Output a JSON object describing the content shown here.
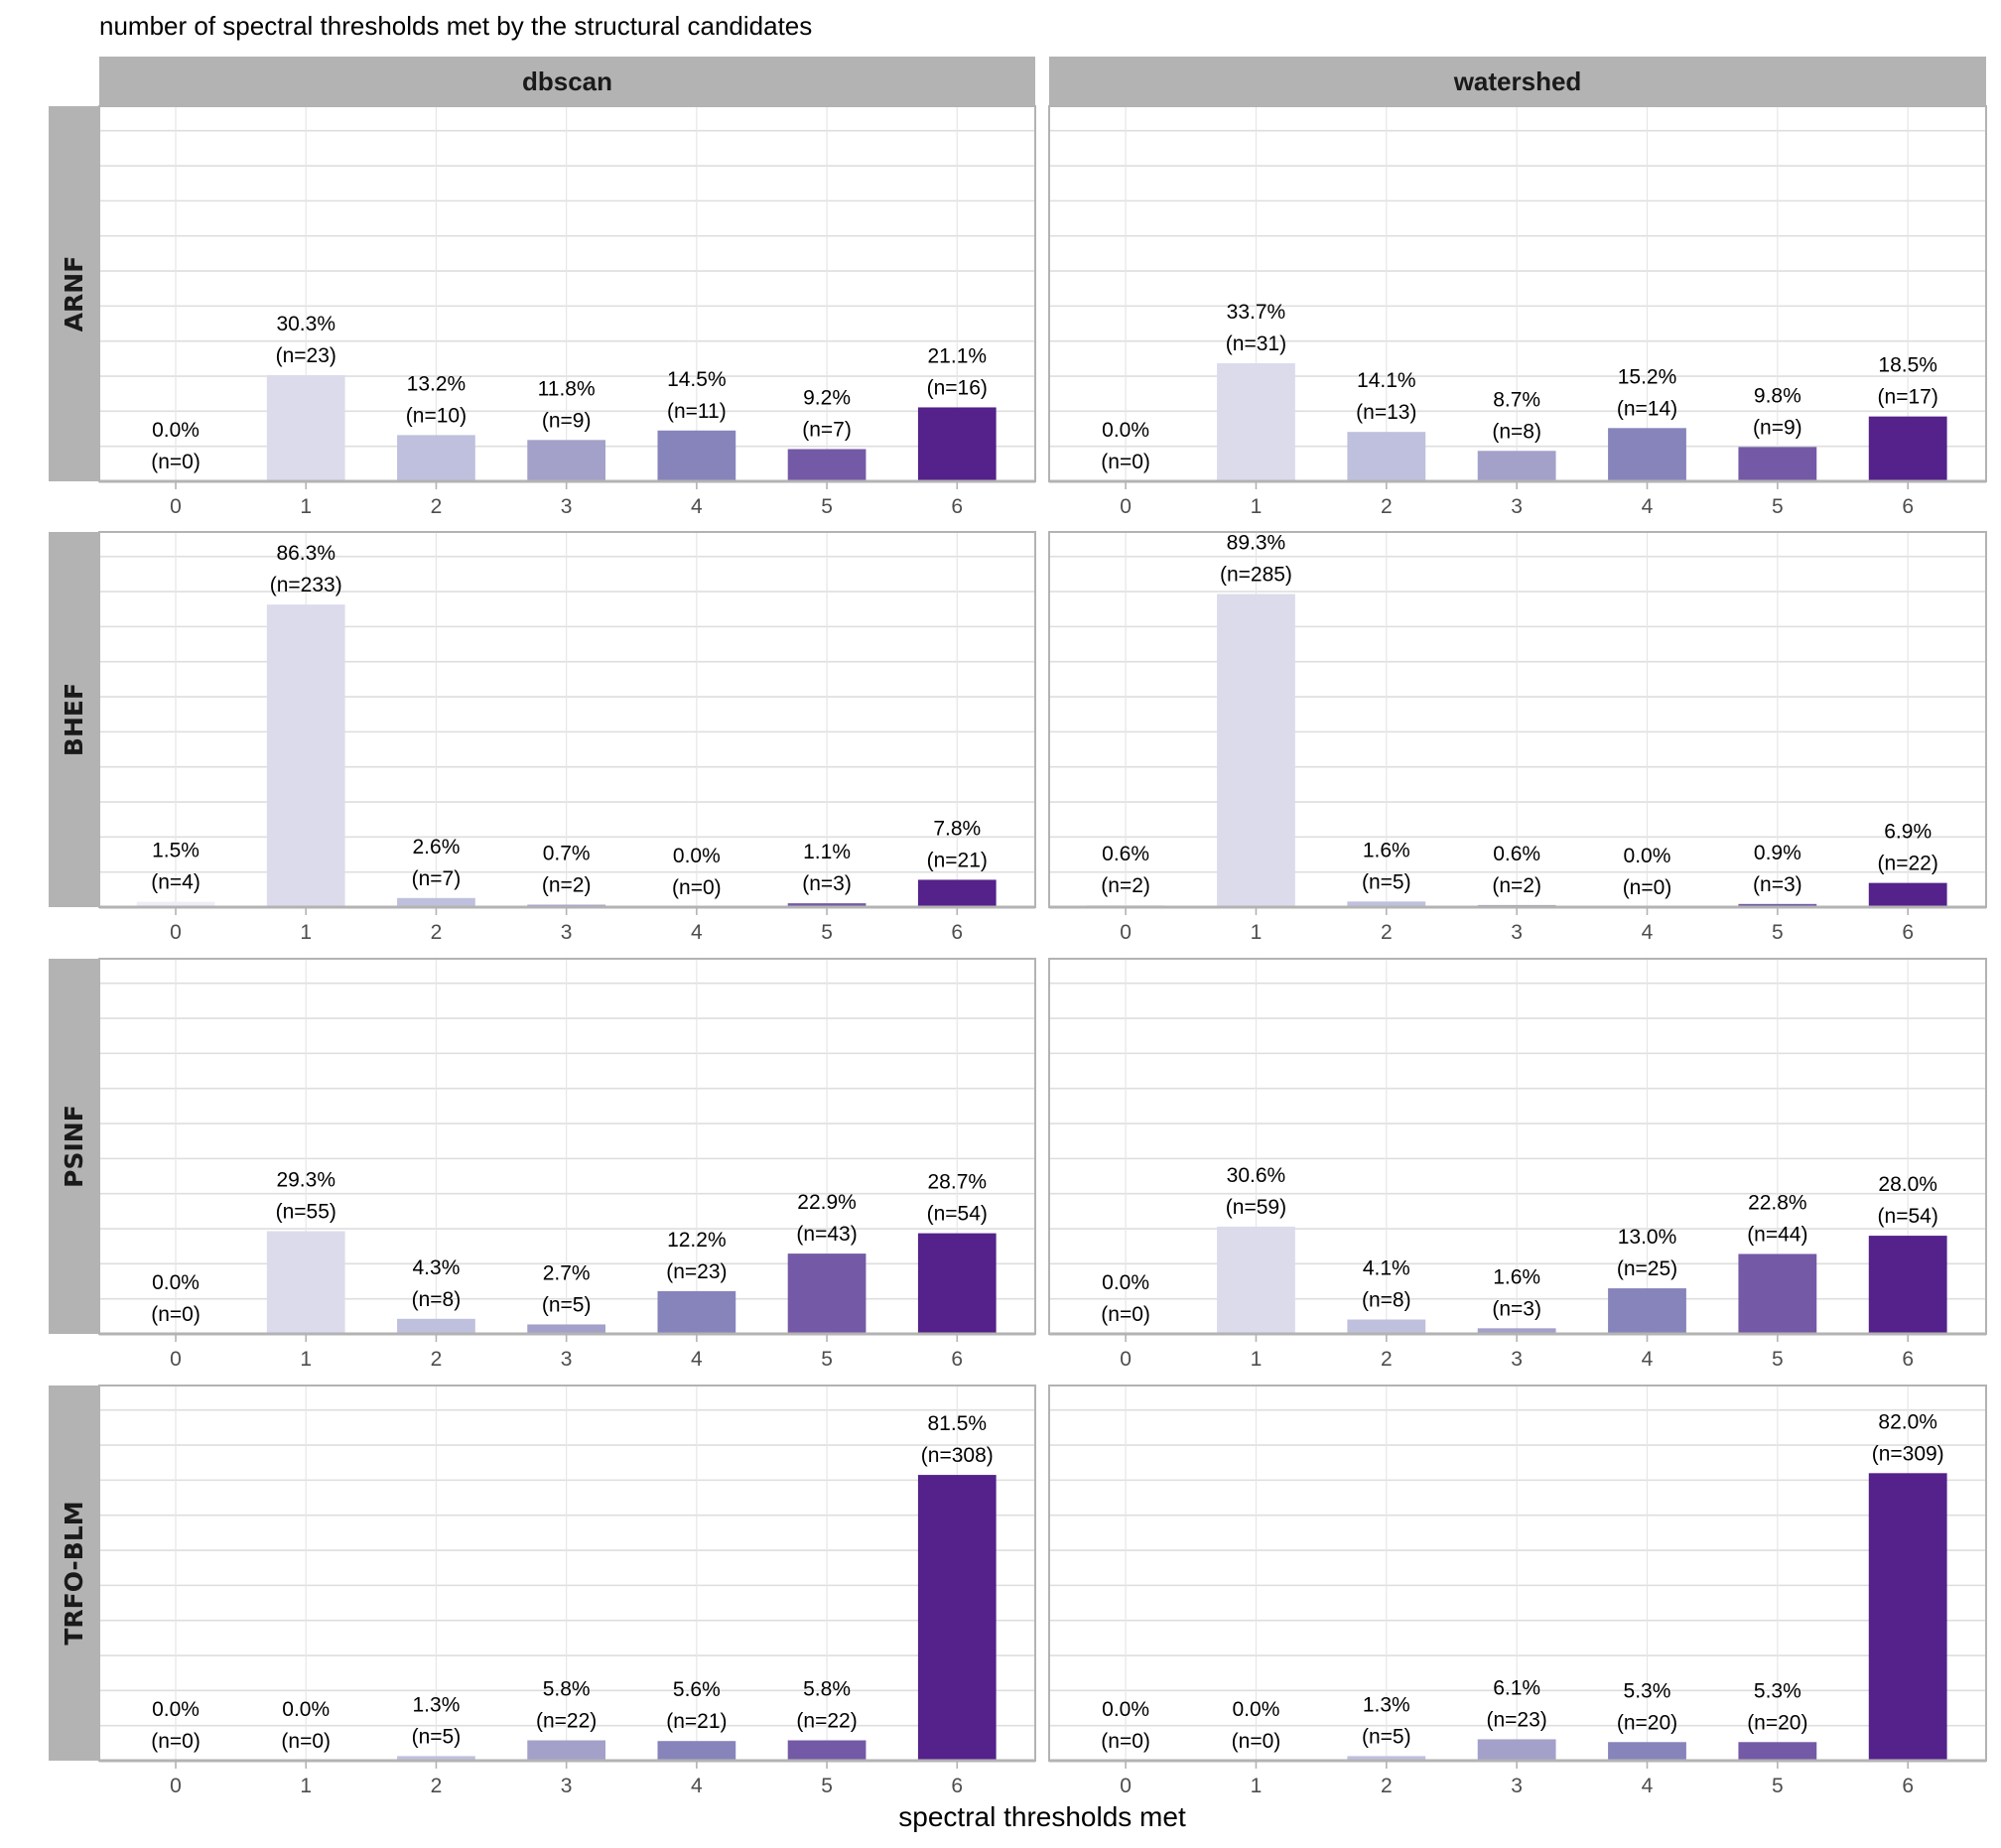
{
  "chart_data": {
    "type": "bar",
    "title": "number of spectral thresholds met by the structural candidates",
    "xlabel": "spectral thresholds met",
    "ylabel": "",
    "x_categories": [
      "0",
      "1",
      "2",
      "3",
      "4",
      "5",
      "6"
    ],
    "ylim": [
      0,
      1.07
    ],
    "y_unit": "proportion",
    "grid": true,
    "legend": "none",
    "facet_columns": [
      "dbscan",
      "watershed"
    ],
    "facet_rows": [
      "ARNF",
      "BHEF",
      "PSINF",
      "TRFO-BLM"
    ],
    "colors": [
      "#efedf5",
      "#dcdbec",
      "#bfc0dd",
      "#a3a0ca",
      "#8784bc",
      "#745aa6",
      "#54228a"
    ],
    "panels": [
      {
        "row": "ARNF",
        "col": "dbscan",
        "pct": [
          0.0,
          30.3,
          13.2,
          11.8,
          14.5,
          9.2,
          21.1
        ],
        "pct_labels": [
          "0.0%",
          "30.3%",
          "13.2%",
          "11.8%",
          "14.5%",
          "9.2%",
          "21.1%"
        ],
        "n_labels": [
          "(n=0)",
          "(n=23)",
          "(n=10)",
          "(n=9)",
          "(n=11)",
          "(n=7)",
          "(n=16)"
        ]
      },
      {
        "row": "ARNF",
        "col": "watershed",
        "pct": [
          0.0,
          33.7,
          14.1,
          8.7,
          15.2,
          9.8,
          18.5
        ],
        "pct_labels": [
          "0.0%",
          "33.7%",
          "14.1%",
          "8.7%",
          "15.2%",
          "9.8%",
          "18.5%"
        ],
        "n_labels": [
          "(n=0)",
          "(n=31)",
          "(n=13)",
          "(n=8)",
          "(n=14)",
          "(n=9)",
          "(n=17)"
        ]
      },
      {
        "row": "BHEF",
        "col": "dbscan",
        "pct": [
          1.5,
          86.3,
          2.6,
          0.7,
          0.0,
          1.1,
          7.8
        ],
        "pct_labels": [
          "1.5%",
          "86.3%",
          "2.6%",
          "0.7%",
          "0.0%",
          "1.1%",
          "7.8%"
        ],
        "n_labels": [
          "(n=4)",
          "(n=233)",
          "(n=7)",
          "(n=2)",
          "(n=0)",
          "(n=3)",
          "(n=21)"
        ]
      },
      {
        "row": "BHEF",
        "col": "watershed",
        "pct": [
          0.6,
          89.3,
          1.6,
          0.6,
          0.0,
          0.9,
          6.9
        ],
        "pct_labels": [
          "0.6%",
          "89.3%",
          "1.6%",
          "0.6%",
          "0.0%",
          "0.9%",
          "6.9%"
        ],
        "n_labels": [
          "(n=2)",
          "(n=285)",
          "(n=5)",
          "(n=2)",
          "(n=0)",
          "(n=3)",
          "(n=22)"
        ]
      },
      {
        "row": "PSINF",
        "col": "dbscan",
        "pct": [
          0.0,
          29.3,
          4.3,
          2.7,
          12.2,
          22.9,
          28.7
        ],
        "pct_labels": [
          "0.0%",
          "29.3%",
          "4.3%",
          "2.7%",
          "12.2%",
          "22.9%",
          "28.7%"
        ],
        "n_labels": [
          "(n=0)",
          "(n=55)",
          "(n=8)",
          "(n=5)",
          "(n=23)",
          "(n=43)",
          "(n=54)"
        ]
      },
      {
        "row": "PSINF",
        "col": "watershed",
        "pct": [
          0.0,
          30.6,
          4.1,
          1.6,
          13.0,
          22.8,
          28.0
        ],
        "pct_labels": [
          "0.0%",
          "30.6%",
          "4.1%",
          "1.6%",
          "13.0%",
          "22.8%",
          "28.0%"
        ],
        "n_labels": [
          "(n=0)",
          "(n=59)",
          "(n=8)",
          "(n=3)",
          "(n=25)",
          "(n=44)",
          "(n=54)"
        ]
      },
      {
        "row": "TRFO-BLM",
        "col": "dbscan",
        "pct": [
          0.0,
          0.0,
          1.3,
          5.8,
          5.6,
          5.8,
          81.5
        ],
        "pct_labels": [
          "0.0%",
          "0.0%",
          "1.3%",
          "5.8%",
          "5.6%",
          "5.8%",
          "81.5%"
        ],
        "n_labels": [
          "(n=0)",
          "(n=0)",
          "(n=5)",
          "(n=22)",
          "(n=21)",
          "(n=22)",
          "(n=308)"
        ]
      },
      {
        "row": "TRFO-BLM",
        "col": "watershed",
        "pct": [
          0.0,
          0.0,
          1.3,
          6.1,
          5.3,
          5.3,
          82.0
        ],
        "pct_labels": [
          "0.0%",
          "0.0%",
          "1.3%",
          "6.1%",
          "5.3%",
          "5.3%",
          "82.0%"
        ],
        "n_labels": [
          "(n=0)",
          "(n=0)",
          "(n=5)",
          "(n=23)",
          "(n=20)",
          "(n=20)",
          "(n=309)"
        ]
      }
    ]
  }
}
